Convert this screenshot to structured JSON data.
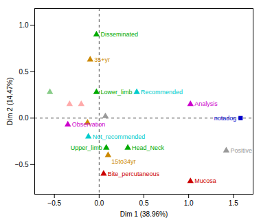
{
  "chart_data": {
    "type": "scatter",
    "xlabel": "Dim 1 (38.96%)",
    "ylabel": "Dim 2 (14.47%)",
    "xlim": [
      -0.72,
      1.72
    ],
    "ylim": [
      -0.82,
      1.18
    ],
    "xticks": [
      -0.5,
      {
        "value": 0.0,
        "label": "0.0"
      },
      0.5,
      {
        "value": 1.0,
        "label": "1.0"
      },
      1.5
    ],
    "yticks": [
      -0.5,
      {
        "value": 0.0,
        "label": "0.0"
      },
      0.5,
      {
        "value": 1.0,
        "label": "1.0"
      }
    ],
    "grid": false,
    "points": [
      {
        "label": "Disseminated",
        "x": -0.03,
        "y": 0.9,
        "color": "#00aa00",
        "marker": "triangle"
      },
      {
        "label": "35+yr",
        "x": -0.1,
        "y": 0.63,
        "color": "#cc8800",
        "marker": "triangle"
      },
      {
        "label": "Lower_limb",
        "x": -0.03,
        "y": 0.28,
        "color": "#00aa00",
        "marker": "triangle"
      },
      {
        "label": "Recommended",
        "x": 0.42,
        "y": 0.28,
        "color": "#00cccc",
        "marker": "triangle"
      },
      {
        "label": "Analysis",
        "x": 1.02,
        "y": 0.15,
        "color": "#cc00cc",
        "marker": "triangle"
      },
      {
        "label": "notadog",
        "x": 1.58,
        "y": 0.0,
        "color": "#0000cc",
        "marker": "square"
      },
      {
        "label": "Observation",
        "x": -0.35,
        "y": -0.07,
        "color": "#cc00cc",
        "marker": "triangle"
      },
      {
        "label": "Not_recommended",
        "x": -0.12,
        "y": -0.2,
        "color": "#00cccc",
        "marker": "triangle"
      },
      {
        "label": "Upper_limb",
        "x": 0.08,
        "y": -0.32,
        "color": "#00aa00",
        "marker": "triangle"
      },
      {
        "label": "Head_Neck",
        "x": 0.32,
        "y": -0.32,
        "color": "#00aa00",
        "marker": "triangle"
      },
      {
        "label": "15to34yr",
        "x": 0.1,
        "y": -0.4,
        "color": "#cc8800",
        "marker": "triangle"
      },
      {
        "label": "Bite_percutaneous",
        "x": 0.05,
        "y": -0.6,
        "color": "#cc0000",
        "marker": "triangle"
      },
      {
        "label": "Mucosa",
        "x": 1.02,
        "y": -0.68,
        "color": "#cc0000",
        "marker": "triangle"
      },
      {
        "label": "Positive",
        "x": 1.42,
        "y": -0.35,
        "color": "#999999",
        "marker": "triangle"
      },
      {
        "x": 0.07,
        "y": 0.02,
        "color": "#999999",
        "marker": "triangle"
      },
      {
        "x": -0.33,
        "y": 0.15,
        "color": "#ffaaaa",
        "marker": "triangle"
      },
      {
        "x": -0.2,
        "y": 0.15,
        "color": "#ffaaaa",
        "marker": "triangle"
      },
      {
        "x": -0.55,
        "y": 0.28,
        "color": "#88cc88",
        "marker": "triangle"
      },
      {
        "x": -0.13,
        "y": -0.05,
        "color": "#cc8800",
        "marker": "triangle"
      }
    ]
  }
}
